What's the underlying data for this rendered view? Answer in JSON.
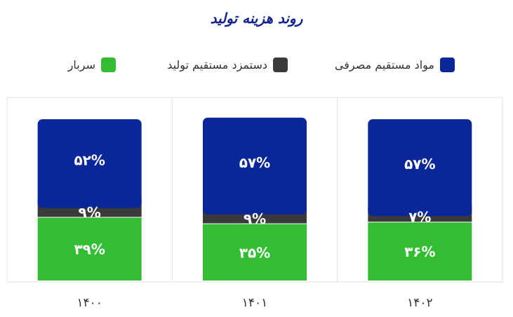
{
  "title": "روند هزینه تولید",
  "colors": {
    "title": "#14238f",
    "materials": "#0a2799",
    "labor": "#3a3a3a",
    "overhead": "#32bd32",
    "panel_border": "#e1e1e1",
    "bar_label": "#ffffff",
    "tick_label": "#333333"
  },
  "legend": [
    {
      "label": "مواد مستقیم مصرفی",
      "color": "#0a2799"
    },
    {
      "label": "دستمزد مستقیم تولید",
      "color": "#3a3a3a"
    },
    {
      "label": "سربار",
      "color": "#32bd32"
    }
  ],
  "chart_data": {
    "type": "bar",
    "stacked": true,
    "title": "روند هزینه تولید",
    "xlabel": "",
    "ylabel": "",
    "ylim": [
      0,
      100
    ],
    "grid": false,
    "legend_position": "top",
    "categories": [
      "۱۴۰۰",
      "۱۴۰۱",
      "۱۴۰۲"
    ],
    "series": [
      {
        "name": "سربار",
        "values": [
          39,
          35,
          36
        ],
        "labels": [
          "۳۹%",
          "۳۵%",
          "۳۶%"
        ],
        "color": "#32bd32"
      },
      {
        "name": "دستمزد مستقیم تولید",
        "values": [
          9,
          9,
          7
        ],
        "labels": [
          "۹%",
          "۹%",
          "۷%"
        ],
        "color": "#3a3a3a"
      },
      {
        "name": "مواد مستقیم مصرفی",
        "values": [
          52,
          57,
          57
        ],
        "labels": [
          "۵۲%",
          "۵۷%",
          "۵۷%"
        ],
        "color": "#0a2799"
      }
    ]
  }
}
